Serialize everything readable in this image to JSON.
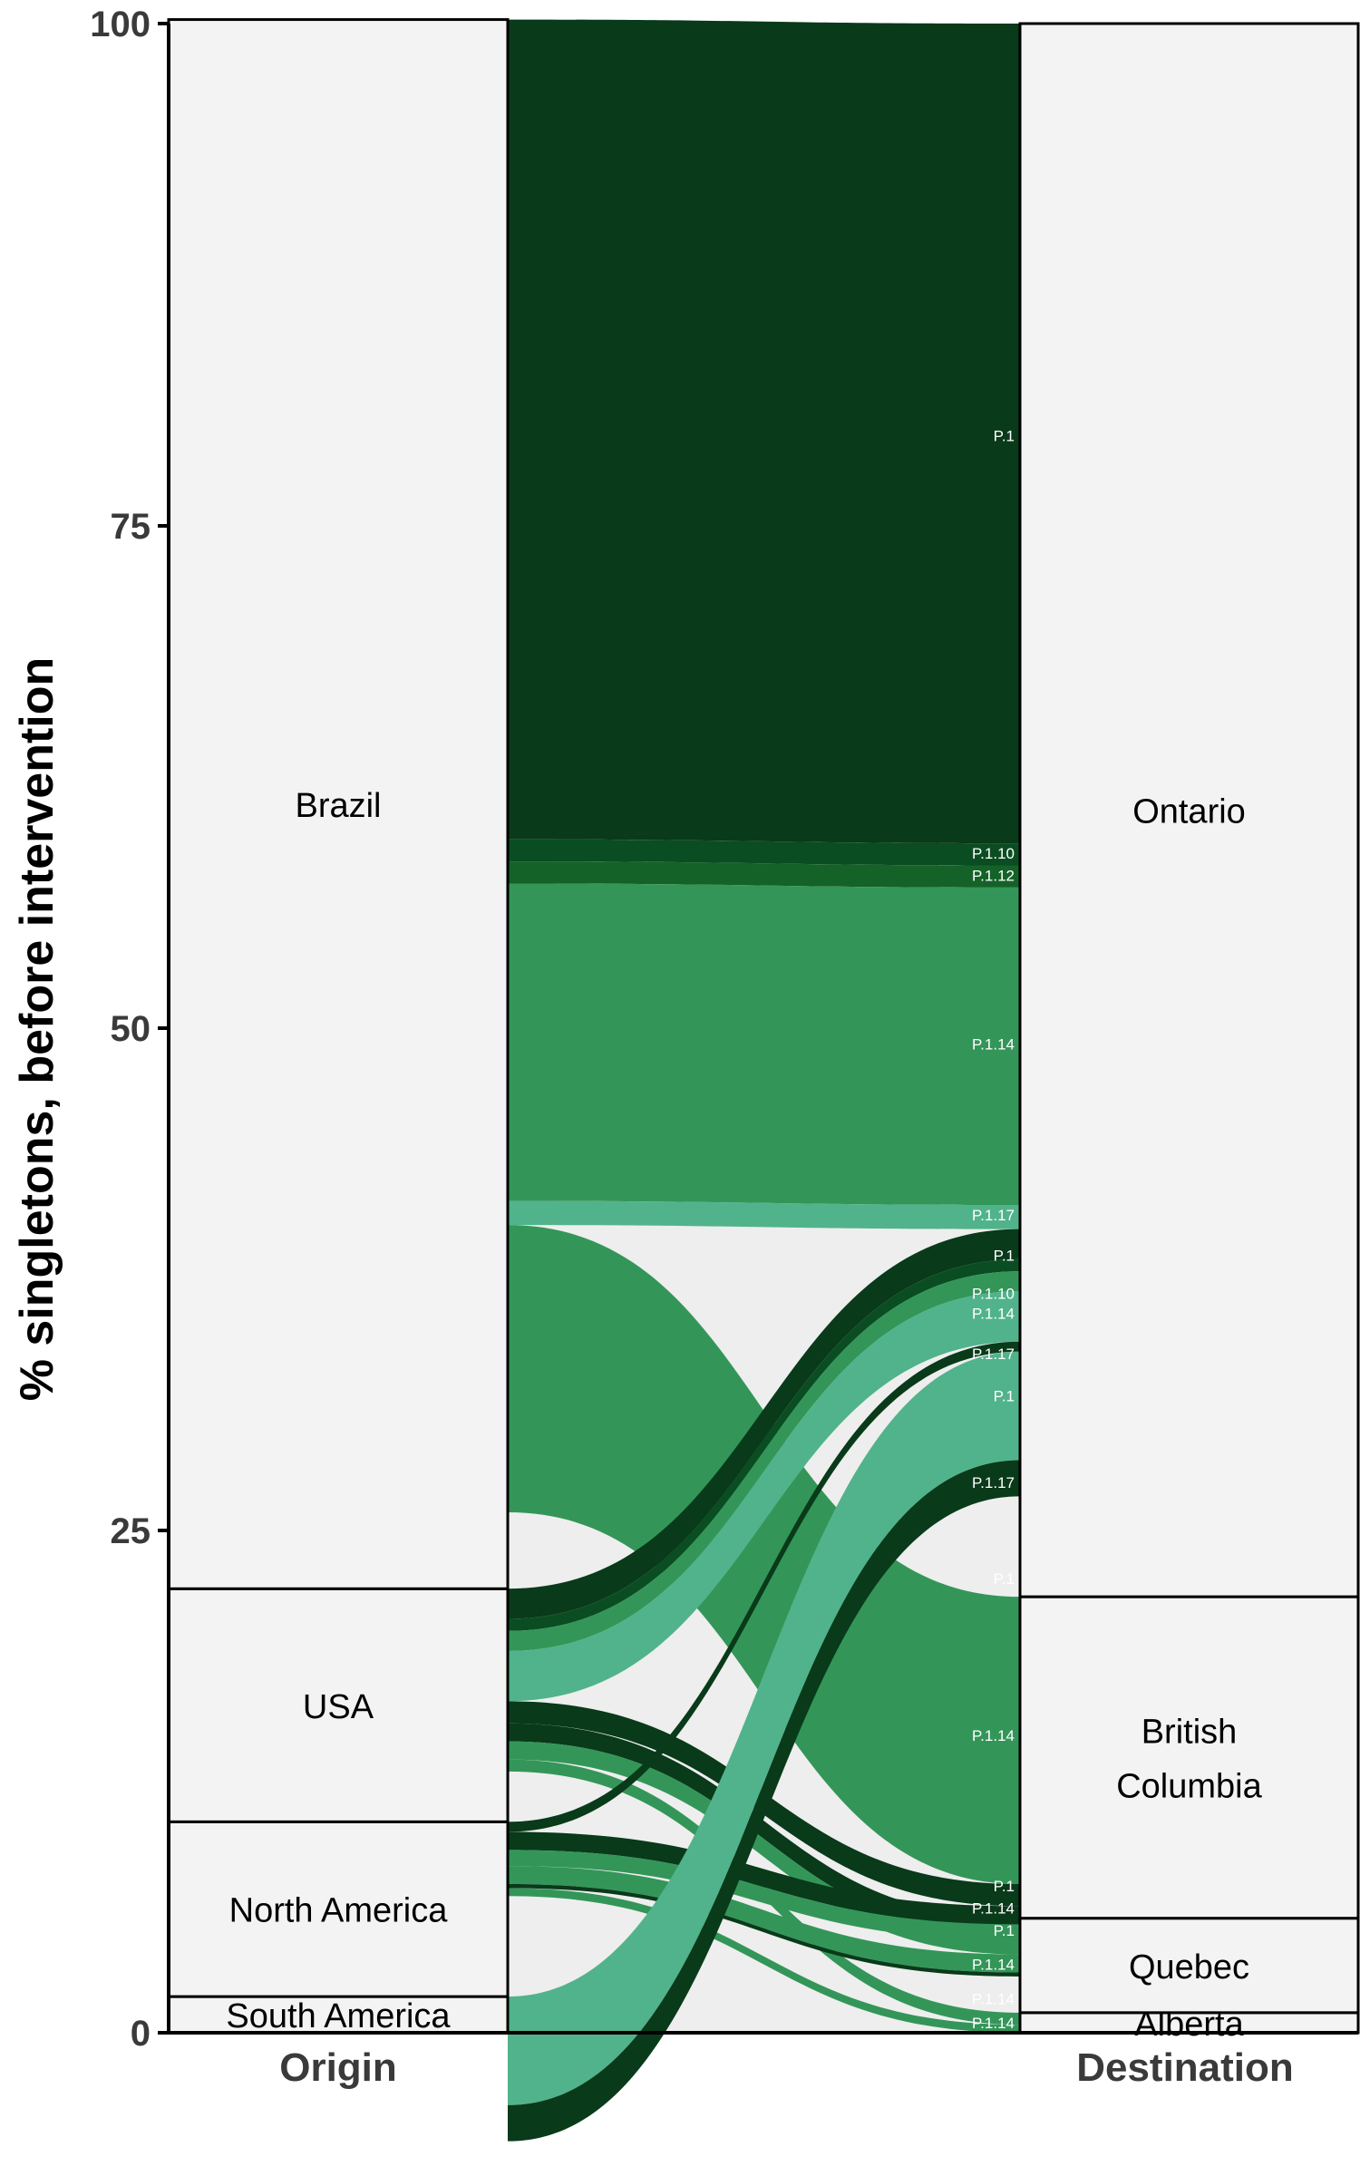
{
  "chart_data": {
    "type": "alluvial",
    "ylabel": "% singletons, before intervention",
    "ylim": [
      0,
      100
    ],
    "yticks": [
      "0",
      "25",
      "50",
      "75",
      "100"
    ],
    "axes": [
      "Origin",
      "Destination"
    ],
    "origin_strata": [
      {
        "name": "South America",
        "value": 1.8
      },
      {
        "name": "North America",
        "value": 8.7
      },
      {
        "name": "USA",
        "value": 11.6
      },
      {
        "name": "Brazil",
        "value": 78.1
      }
    ],
    "destination_strata": [
      {
        "name": "Alberta",
        "value": 1.0
      },
      {
        "name": "Quebec",
        "value": 4.7
      },
      {
        "name": "British Columbia",
        "value": 16.0
      },
      {
        "name": "Ontario",
        "value": 78.3
      }
    ],
    "lineage_colors": {
      "P.1": "#093a1a",
      "P.1.10": "#0b4d22",
      "P.1.12": "#146228",
      "P.1.14": "#339658",
      "P.1.17": "#51b38b"
    },
    "flows": [
      {
        "lineage": "P.1",
        "origin": "Brazil",
        "destination": "Ontario",
        "value": 40.8
      },
      {
        "lineage": "P.1.10",
        "origin": "Brazil",
        "destination": "Ontario",
        "value": 1.1
      },
      {
        "lineage": "P.1.12",
        "origin": "Brazil",
        "destination": "Ontario",
        "value": 1.1
      },
      {
        "lineage": "P.1.14",
        "origin": "Brazil",
        "destination": "Ontario",
        "value": 15.8
      },
      {
        "lineage": "P.1.17",
        "origin": "Brazil",
        "destination": "Ontario",
        "value": 1.2
      },
      {
        "lineage": "P.1.14",
        "origin": "Brazil",
        "destination": "British Columbia",
        "value": 14.3
      },
      {
        "lineage": "P.1",
        "origin": "USA",
        "destination": "Ontario",
        "value": 1.5
      },
      {
        "lineage": "P.1.10",
        "origin": "USA",
        "destination": "Ontario",
        "value": 0.6
      },
      {
        "lineage": "P.1.14",
        "origin": "USA",
        "destination": "Ontario",
        "value": 1.0
      },
      {
        "lineage": "P.1.17",
        "origin": "USA",
        "destination": "Ontario",
        "value": 2.5
      },
      {
        "lineage": "P.1",
        "origin": "USA",
        "destination": "British Columbia",
        "value": 1.1
      },
      {
        "lineage": "P.1",
        "origin": "USA",
        "destination": "Quebec",
        "value": 0.9
      },
      {
        "lineage": "P.1.14",
        "origin": "USA",
        "destination": "Quebec",
        "value": 0.9
      },
      {
        "lineage": "P.1.14",
        "origin": "USA",
        "destination": "Alberta",
        "value": 0.6
      },
      {
        "lineage": "P.1",
        "origin": "North America",
        "destination": "Ontario",
        "value": 0.5
      },
      {
        "lineage": "P.1",
        "origin": "North America",
        "destination": "British Columbia",
        "value": 0.9
      },
      {
        "lineage": "P.1.14",
        "origin": "North America",
        "destination": "British Columbia",
        "value": 0.8
      },
      {
        "lineage": "P.1.14",
        "origin": "North America",
        "destination": "Quebec",
        "value": 0.9
      },
      {
        "lineage": "P.1",
        "origin": "North America",
        "destination": "Quebec",
        "value": 0.2
      },
      {
        "lineage": "P.1.14",
        "origin": "North America",
        "destination": "Alberta",
        "value": 0.4
      },
      {
        "lineage": "P.1.17",
        "origin": "South America",
        "destination": "Ontario",
        "value": 5.4
      },
      {
        "lineage": "P.1",
        "origin": "South America",
        "destination": "Ontario",
        "value": 1.8
      }
    ],
    "flow_labels": [
      {
        "text": "P.1",
        "y": 79.5
      },
      {
        "text": "P.1.10",
        "y": 58.7
      },
      {
        "text": "P.1.12",
        "y": 57.6
      },
      {
        "text": "P.1.14",
        "y": 49.2
      },
      {
        "text": "P.1.17",
        "y": 40.7
      },
      {
        "text": "P.1",
        "y": 38.7
      },
      {
        "text": "P.1.10",
        "y": 36.8
      },
      {
        "text": "P.1.14",
        "y": 35.8
      },
      {
        "text": "P.1.17",
        "y": 33.8
      },
      {
        "text": "P.1",
        "y": 31.7
      },
      {
        "text": "P.1.17",
        "y": 27.4
      },
      {
        "text": "P.1",
        "y": 22.6
      },
      {
        "text": "P.1.14",
        "y": 14.8
      },
      {
        "text": "P.1",
        "y": 7.3
      },
      {
        "text": "P.1.14",
        "y": 6.2
      },
      {
        "text": "P.1",
        "y": 5.1
      },
      {
        "text": "P.1.14",
        "y": 3.4
      },
      {
        "text": "P.1.14",
        "y": 1.7
      },
      {
        "text": "P.1.14",
        "y": 0.5
      }
    ]
  }
}
